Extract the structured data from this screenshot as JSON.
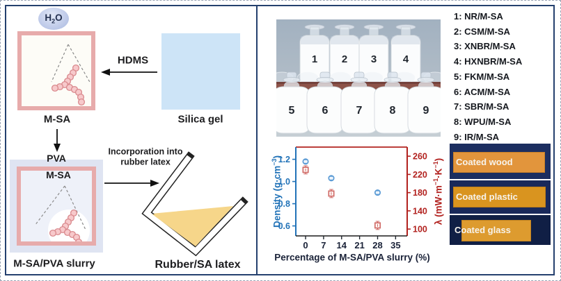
{
  "panel_left": {
    "h2o": {
      "base1": "H",
      "sub": "2",
      "base2": "O"
    },
    "msa_label": "M-SA",
    "hdms_label": "HDMS",
    "silica_label": "Silica gel",
    "pva_label": "PVA",
    "slurry_box_msa_label": "M-SA",
    "incorporation_line1": "Incorporation into",
    "incorporation_line2": "rubber latex",
    "slurry_caption": "M-SA/PVA slurry",
    "latex_caption": "Rubber/SA latex"
  },
  "bottles_photo": {
    "back_labels": [
      "1",
      "2",
      "3",
      "4"
    ],
    "front_labels": [
      "5",
      "6",
      "7",
      "8",
      "9"
    ]
  },
  "sample_list": [
    "1: NR/M-SA",
    "2: CSM/M-SA",
    "3: XNBR/M-SA",
    "4: HXNBR/M-SA",
    "5: FKM/M-SA",
    "6: ACM/M-SA",
    "7: SBR/M-SA",
    "8: WPU/M-SA",
    "9: IR/M-SA"
  ],
  "coated_samples": [
    {
      "label": "Coated wood"
    },
    {
      "label": "Coated plastic"
    },
    {
      "label": "Coated glass"
    }
  ],
  "chart_data": {
    "type": "scatter",
    "x": [
      0,
      10,
      28
    ],
    "series": [
      {
        "name": "Density",
        "axis": "left",
        "marker": "circle",
        "color": "#5b9bd5",
        "values": [
          1.18,
          1.03,
          0.9
        ],
        "error": 0.02
      },
      {
        "name": "Thermal conductivity",
        "axis": "right",
        "marker": "square",
        "color": "#cf6763",
        "values": [
          230,
          178,
          108
        ],
        "error": 9
      }
    ],
    "xlabel": "Percentage of M-SA/PVA slurry (%)",
    "x_ticks": [
      0,
      7,
      14,
      21,
      28,
      35
    ],
    "xlim": [
      -3.8,
      39.5
    ],
    "ylim_left": [
      0.51,
      1.31
    ],
    "ylim_right": [
      85,
      280
    ],
    "grid": false,
    "left_axis": {
      "label_pre": "Density (g·cm",
      "label_sup": "−3",
      "label_post": ")",
      "ticks": [
        "1.2",
        "1.0",
        "0.8",
        "0.6"
      ],
      "color": "#2273b8"
    },
    "right_axis": {
      "label_pre": "λ (mW·m",
      "label_sup1": "−1",
      "label_mid": "·K",
      "label_sup2": "−1",
      "label_post": ")",
      "ticks": [
        "260",
        "220",
        "180",
        "140",
        "100"
      ],
      "color": "#b2221f"
    }
  },
  "colors": {
    "frame": "#24406e",
    "pink_border": "#e7abab",
    "silica_blue": "#cde4f7",
    "lavender": "#dfe4f2",
    "latex_yellow": "#f6d68a",
    "chain_fill": "#f7c9cb",
    "chain_stroke": "#d9898d",
    "coated_orange": "#e2953c",
    "photo_shelf": "#8d5349"
  }
}
